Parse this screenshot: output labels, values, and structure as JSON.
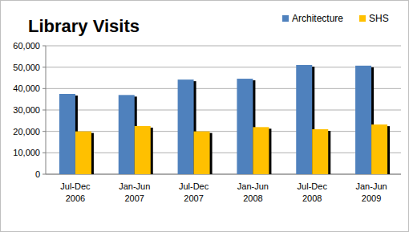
{
  "chart_data": {
    "type": "bar",
    "title": "Library Visits",
    "categories": [
      "Jul-Dec 2006",
      "Jan-Jun 2007",
      "Jul-Dec 2007",
      "Jan-Jun 2008",
      "Jul-Dec 2008",
      "Jan-Jun 2009"
    ],
    "series": [
      {
        "name": "Architecture",
        "color": "#4f81bd",
        "values": [
          37500,
          37000,
          44200,
          44600,
          51000,
          50700
        ]
      },
      {
        "name": "SHS",
        "color": "#ffc000",
        "values": [
          20000,
          22500,
          20000,
          22000,
          21000,
          23200
        ]
      }
    ],
    "ylim": [
      0,
      60000
    ],
    "yticks": [
      0,
      {
        "value": 10000,
        "label": "10,000"
      },
      {
        "value": 20000,
        "label": "20,000"
      },
      {
        "value": 30000,
        "label": "30,000"
      },
      {
        "value": 40000,
        "label": "40,000"
      },
      {
        "value": 50000,
        "label": "50,000"
      },
      {
        "value": 60000,
        "label": "60,000"
      }
    ],
    "grid": true,
    "legend": "top-right"
  }
}
